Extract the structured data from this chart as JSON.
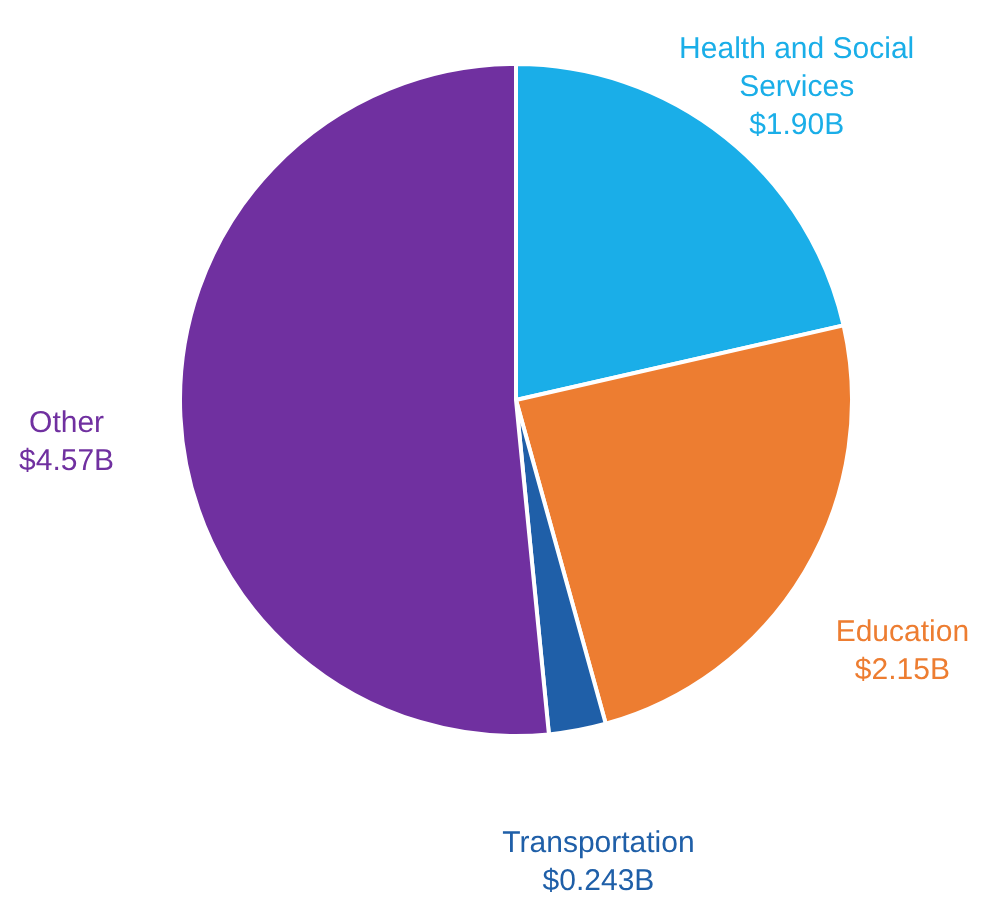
{
  "chart_data": {
    "type": "pie",
    "categories": [
      "Health and Social Services",
      "Education",
      "Transportation",
      "Other"
    ],
    "values": [
      1.9,
      2.15,
      0.243,
      4.57
    ],
    "value_labels": [
      "$1.90B",
      "$2.15B",
      "$0.243B",
      "$4.57B"
    ],
    "colors": [
      "#1aaee8",
      "#ed7d31",
      "#1f5fa8",
      "#7030a0"
    ]
  }
}
